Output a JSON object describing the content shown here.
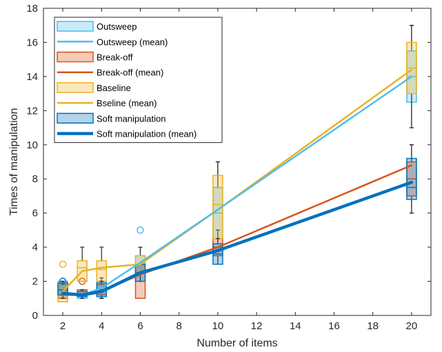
{
  "chart_data": {
    "type": "box",
    "xlabel": "Number of items",
    "ylabel": "Times of manipulation",
    "xlim": [
      1,
      21
    ],
    "ylim": [
      0,
      18
    ],
    "x_ticks": [
      2,
      4,
      6,
      8,
      10,
      12,
      14,
      16,
      18,
      20
    ],
    "y_ticks": [
      0,
      2,
      4,
      6,
      8,
      10,
      12,
      14,
      16,
      18
    ],
    "x": [
      2,
      3,
      4,
      6,
      10,
      20
    ],
    "grid": false,
    "legend_position": "top-left",
    "legend": [
      {
        "label": "Outsweep",
        "kind": "box",
        "series": "outsweep"
      },
      {
        "label": "Outsweep (mean)",
        "kind": "line",
        "series": "outsweep"
      },
      {
        "label": "Break-off",
        "kind": "box",
        "series": "breakoff"
      },
      {
        "label": "Break-off (mean)",
        "kind": "line",
        "series": "breakoff"
      },
      {
        "label": "Baseline",
        "kind": "box",
        "series": "baseline"
      },
      {
        "label": "Bseline (mean)",
        "kind": "line",
        "series": "baseline"
      },
      {
        "label": "Soft manipulation",
        "kind": "box",
        "series": "soft"
      },
      {
        "label": "Soft manipulation (mean)",
        "kind": "line",
        "series": "soft"
      }
    ],
    "series": [
      {
        "id": "outsweep",
        "color": "#4DBEEE",
        "mean": [
          1.3,
          1.2,
          1.6,
          3.1,
          6.2,
          14.0
        ],
        "boxes": [
          {
            "x": 2,
            "q1": 1,
            "median": 1,
            "q3": 2,
            "whisker_low": 1,
            "whisker_high": 2,
            "outliers": []
          },
          {
            "x": 3,
            "q1": 1,
            "median": 1,
            "q3": 1.5,
            "whisker_low": 1,
            "whisker_high": 1.5,
            "outliers": []
          },
          {
            "x": 4,
            "q1": 1.2,
            "median": 1.5,
            "q3": 2,
            "whisker_low": 1,
            "whisker_high": 2.2,
            "outliers": []
          },
          {
            "x": 6,
            "q1": 2.5,
            "median": 3,
            "q3": 3.5,
            "whisker_low": 2,
            "whisker_high": 4,
            "outliers": [
              5
            ]
          },
          {
            "x": 10,
            "q1": 4.5,
            "median": 6,
            "q3": 7.5,
            "whisker_low": 4.5,
            "whisker_high": 9,
            "outliers": []
          },
          {
            "x": 20,
            "q1": 12.5,
            "median": 14,
            "q3": 15.5,
            "whisker_low": 11,
            "whisker_high": 17,
            "outliers": []
          }
        ]
      },
      {
        "id": "breakoff",
        "color": "#D95319",
        "mean": [
          1.2,
          1.2,
          1.4,
          2.4,
          4.0,
          8.8
        ],
        "boxes": [
          {
            "x": 2,
            "q1": 1,
            "median": 1.2,
            "q3": 1.8,
            "whisker_low": 1,
            "whisker_high": 2,
            "outliers": []
          },
          {
            "x": 3,
            "q1": 1.2,
            "median": 1.2,
            "q3": 1.5,
            "whisker_low": 1,
            "whisker_high": 1.5,
            "outliers": [
              2
            ]
          },
          {
            "x": 4,
            "q1": 1.2,
            "median": 1.5,
            "q3": 1.8,
            "whisker_low": 1,
            "whisker_high": 2,
            "outliers": []
          },
          {
            "x": 6,
            "q1": 1,
            "median": 2.5,
            "q3": 3,
            "whisker_low": 1,
            "whisker_high": 3,
            "outliers": []
          },
          {
            "x": 10,
            "q1": 3.5,
            "median": 4,
            "q3": 4.5,
            "whisker_low": 3,
            "whisker_high": 5,
            "outliers": []
          },
          {
            "x": 20,
            "q1": 7,
            "median": 8,
            "q3": 9,
            "whisker_low": 6,
            "whisker_high": 10,
            "outliers": []
          }
        ]
      },
      {
        "id": "baseline",
        "color": "#EDB120",
        "mean": [
          1.4,
          2.6,
          2.8,
          3.0,
          6.2,
          14.4
        ],
        "boxes": [
          {
            "x": 2,
            "q1": 0.8,
            "median": 1.4,
            "q3": 1.8,
            "whisker_low": 0.8,
            "whisker_high": 2,
            "outliers": [
              3
            ]
          },
          {
            "x": 3,
            "q1": 2,
            "median": 2.8,
            "q3": 3.2,
            "whisker_low": 2,
            "whisker_high": 4,
            "outliers": []
          },
          {
            "x": 4,
            "q1": 2,
            "median": 2.7,
            "q3": 3.2,
            "whisker_low": 2,
            "whisker_high": 4,
            "outliers": []
          },
          {
            "x": 6,
            "q1": 2.5,
            "median": 3,
            "q3": 3.5,
            "whisker_low": 2,
            "whisker_high": 4,
            "outliers": []
          },
          {
            "x": 10,
            "q1": 4.5,
            "median": 6.5,
            "q3": 8.2,
            "whisker_low": 4.5,
            "whisker_high": 9,
            "outliers": []
          },
          {
            "x": 20,
            "q1": 13,
            "median": 14.5,
            "q3": 16,
            "whisker_low": 11,
            "whisker_high": 17,
            "outliers": []
          }
        ]
      },
      {
        "id": "soft",
        "color": "#0072BD",
        "mean": [
          1.3,
          1.2,
          1.4,
          2.5,
          3.8,
          7.8
        ],
        "boxes": [
          {
            "x": 2,
            "q1": 1.2,
            "median": 1.5,
            "q3": 1.9,
            "whisker_low": 1,
            "whisker_high": 2,
            "outliers": [
              2
            ]
          },
          {
            "x": 3,
            "q1": 1.1,
            "median": 1.2,
            "q3": 1.4,
            "whisker_low": 1,
            "whisker_high": 1.5,
            "outliers": []
          },
          {
            "x": 4,
            "q1": 1.1,
            "median": 1.5,
            "q3": 1.9,
            "whisker_low": 1,
            "whisker_high": 2,
            "outliers": []
          },
          {
            "x": 6,
            "q1": 2,
            "median": 2.5,
            "q3": 3,
            "whisker_low": 2,
            "whisker_high": 3,
            "outliers": []
          },
          {
            "x": 10,
            "q1": 3,
            "median": 3.6,
            "q3": 4.2,
            "whisker_low": 3,
            "whisker_high": 4.5,
            "outliers": []
          },
          {
            "x": 20,
            "q1": 6.8,
            "median": 7.5,
            "q3": 9.2,
            "whisker_low": 6,
            "whisker_high": 10,
            "outliers": []
          }
        ]
      }
    ]
  }
}
